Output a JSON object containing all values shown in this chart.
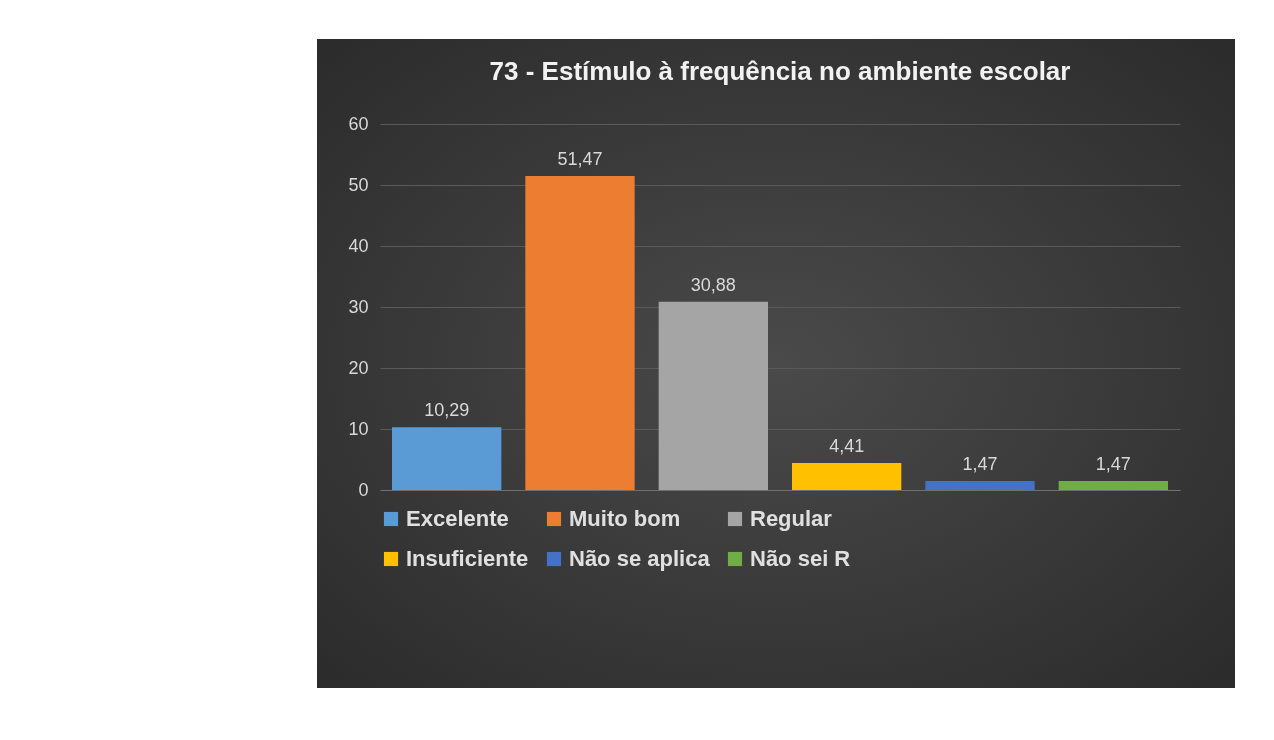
{
  "chart_data": {
    "type": "bar",
    "title": "73 - Estímulo à frequência no ambiente escolar",
    "categories": [
      null,
      null,
      null,
      null,
      null,
      null
    ],
    "series": [
      {
        "name": "Excelente",
        "color": "#5b9bd5",
        "values": [
          10.29,
          null,
          null,
          null,
          null,
          null
        ],
        "value_labels": [
          "10,29",
          null,
          null,
          null,
          null,
          null
        ]
      },
      {
        "name": "Muito bom",
        "color": "#ed7d31",
        "values": [
          null,
          51.47,
          null,
          null,
          null,
          null
        ],
        "value_labels": [
          null,
          "51,47",
          null,
          null,
          null,
          null
        ]
      },
      {
        "name": "Regular",
        "color": "#a5a5a5",
        "values": [
          null,
          null,
          30.88,
          null,
          null,
          null
        ],
        "value_labels": [
          null,
          null,
          "30,88",
          null,
          null,
          null
        ]
      },
      {
        "name": "Insuficiente",
        "color": "#ffc000",
        "values": [
          null,
          null,
          null,
          4.41,
          null,
          null
        ],
        "value_labels": [
          null,
          null,
          null,
          "4,41",
          null,
          null
        ]
      },
      {
        "name": "Não se aplica",
        "color": "#4472c4",
        "values": [
          null,
          null,
          null,
          null,
          1.47,
          null
        ],
        "value_labels": [
          null,
          null,
          null,
          null,
          "1,47",
          null
        ]
      },
      {
        "name": "Não sei R",
        "color": "#70ad47",
        "values": [
          null,
          null,
          null,
          null,
          null,
          1.47
        ],
        "value_labels": [
          null,
          null,
          null,
          null,
          null,
          "1,47"
        ]
      }
    ],
    "ylim": [
      0,
      60
    ],
    "yticks": [
      0,
      10,
      20,
      30,
      40,
      50,
      60
    ],
    "grid": "y",
    "legend": "bottom"
  }
}
